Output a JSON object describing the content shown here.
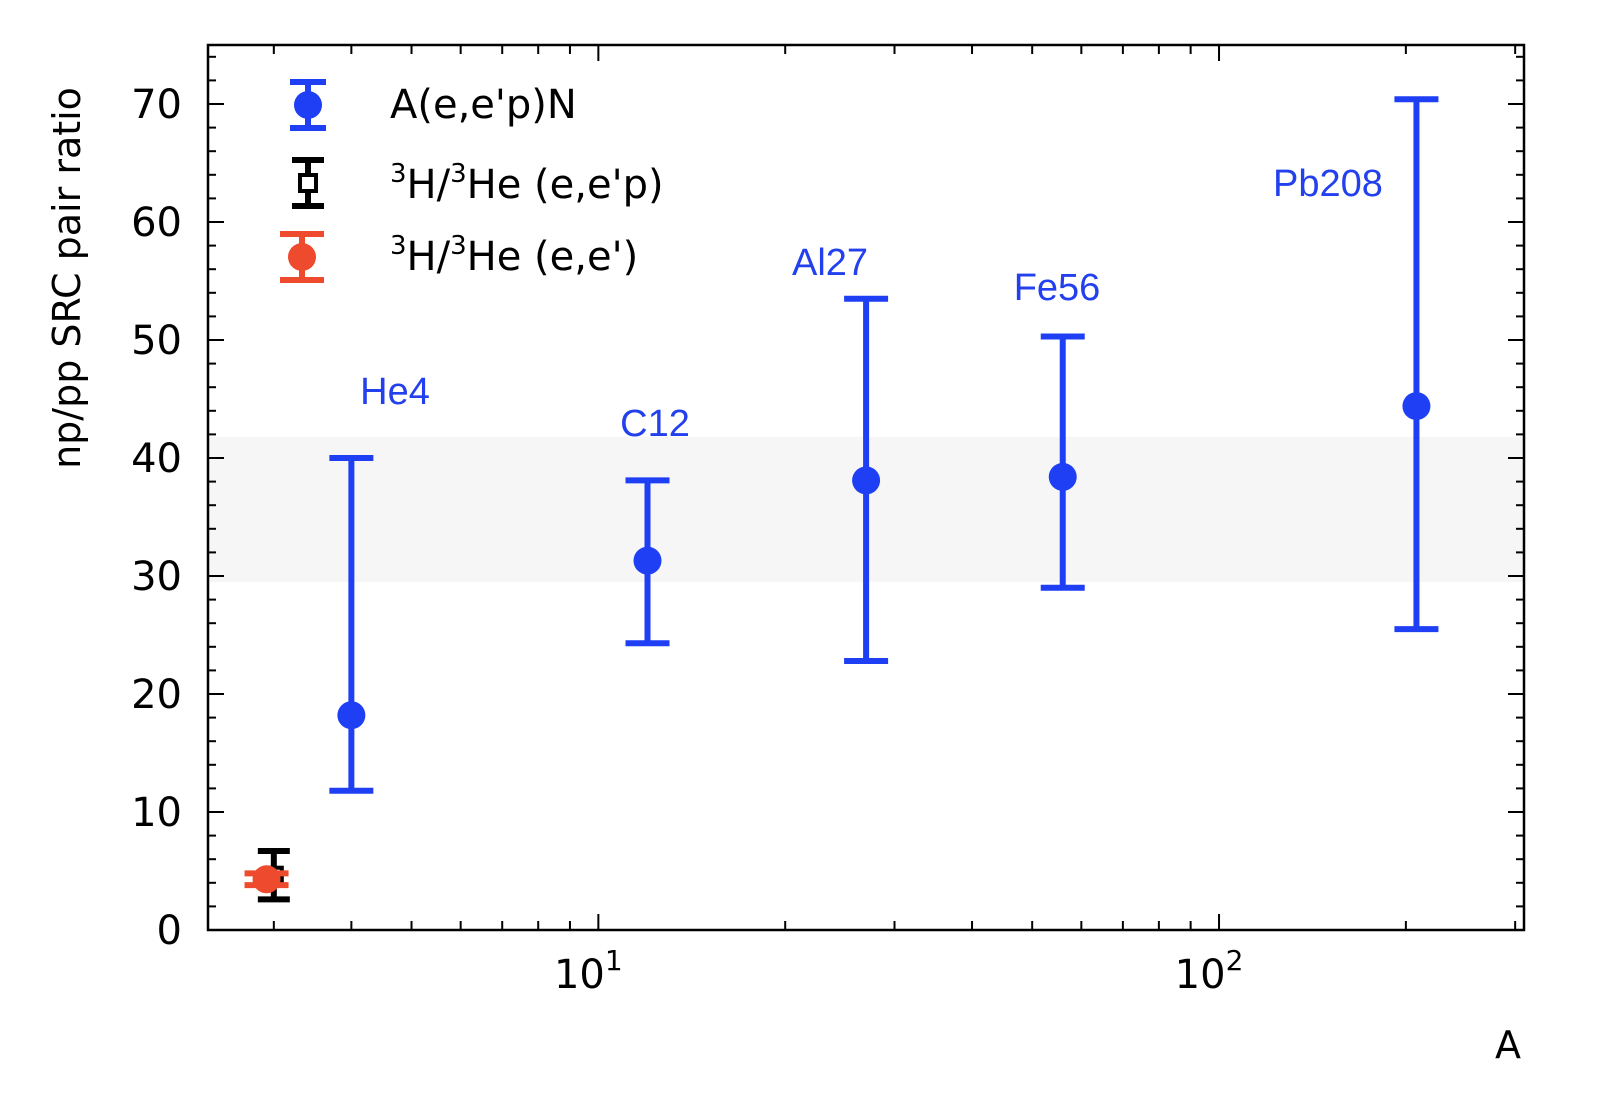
{
  "chart_data": {
    "type": "scatter",
    "title": "",
    "xlabel": "A",
    "ylabel": "np/pp SRC pair ratio",
    "xscale": "log",
    "xlim": [
      2.35,
      310
    ],
    "ylim": [
      0,
      75
    ],
    "yticks": [
      0,
      10,
      20,
      30,
      40,
      50,
      60,
      70
    ],
    "xticks": [
      {
        "value": 10,
        "base": "10",
        "exp": "1"
      },
      {
        "value": 100,
        "base": "10",
        "exp": "2"
      }
    ],
    "band": {
      "y_low": 29.5,
      "y_high": 41.8,
      "color": "#f6f6f6"
    },
    "grid": false,
    "legend_position": "top-left",
    "series": [
      {
        "name": "A(e,e'p)N",
        "legend_label": "A(e,e'p)N",
        "color": "#1f3ff5",
        "marker": "circle-filled",
        "points": [
          {
            "x": 4,
            "y": 18.2,
            "ylow": 11.8,
            "yhigh": 40.0,
            "label": "He4"
          },
          {
            "x": 12,
            "y": 31.3,
            "ylow": 24.3,
            "yhigh": 38.1,
            "label": "C12"
          },
          {
            "x": 27,
            "y": 38.1,
            "ylow": 22.8,
            "yhigh": 53.5,
            "label": "Al27"
          },
          {
            "x": 56,
            "y": 38.4,
            "ylow": 29.0,
            "yhigh": 50.3,
            "label": "Fe56"
          },
          {
            "x": 208,
            "y": 44.4,
            "ylow": 25.5,
            "yhigh": 70.4,
            "label": "Pb208"
          }
        ]
      },
      {
        "name": "3H/3He (e,e'p)",
        "legend_sup1": "3",
        "legend_mid": "H/",
        "legend_sup2": "3",
        "legend_rest": "He (e,e'p)",
        "color": "#000000",
        "marker": "square-open",
        "points": [
          {
            "x": 3,
            "y": 4.6,
            "ylow": 2.6,
            "yhigh": 6.7
          }
        ]
      },
      {
        "name": "3H/3He (e,e')",
        "legend_sup1": "3",
        "legend_mid": "H/",
        "legend_sup2": "3",
        "legend_rest": "He (e,e')",
        "color": "#ee4a2e",
        "marker": "circle-filled",
        "points": [
          {
            "x": 2.92,
            "y": 4.3,
            "ylow": 3.8,
            "yhigh": 4.8
          }
        ]
      }
    ],
    "label_colors": {
      "points": "#2340ee"
    }
  }
}
